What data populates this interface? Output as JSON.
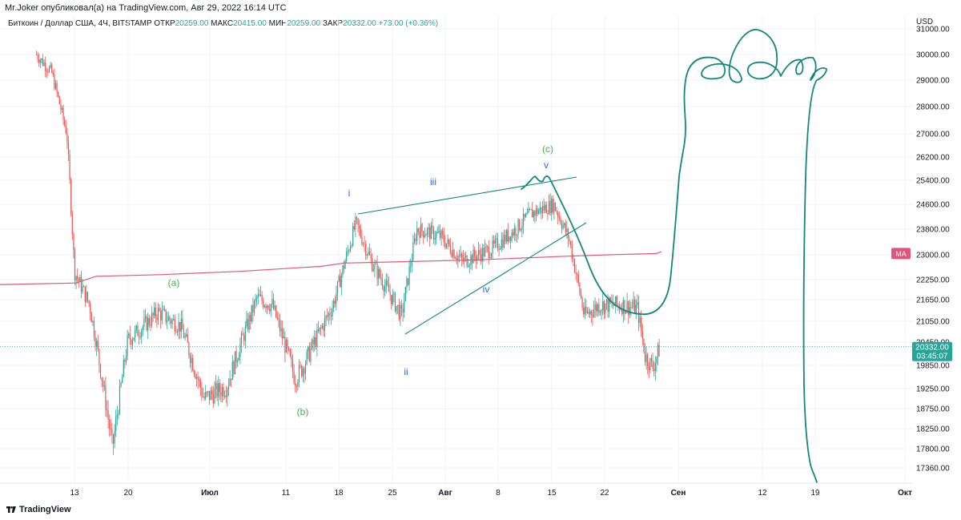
{
  "header": {
    "publish_line": "Mr.Joker опубликовал(а) на TradingView.com, Авг 29, 2022 16:14 UTC"
  },
  "legend": {
    "symbol": "Биткоин / Доллар США, 4Ч, BITSTAMP",
    "open_label": "ОТКР",
    "open_value": "20259.00",
    "high_label": "МАКС",
    "high_value": "20415.00",
    "low_label": "МИН",
    "low_value": "20259.00",
    "close_label": "ЗАКР",
    "close_value": "20332.00",
    "change": "+73.00 (+0.36%)"
  },
  "footer": {
    "brand": "TradingView"
  },
  "colors": {
    "up": "#26a69a",
    "down": "#ef5350",
    "ma": "#e0557a",
    "wave_green": "#4caf50",
    "wave_blue": "#2962ff",
    "drawing": "#11887a",
    "grid": "#f0f3fa"
  },
  "chart_data": {
    "type": "candlestick",
    "price_axis_label": "USD",
    "y_ticks": [
      31000,
      30000,
      29000,
      28000,
      27000,
      26200,
      25400,
      24600,
      23800,
      23000,
      22250,
      21650,
      21050,
      20450,
      19850,
      19250,
      18750,
      18250,
      17800,
      17360
    ],
    "y_tick_labels": [
      "31000.00",
      "30000.00",
      "29000.00",
      "28000.00",
      "27000.00",
      "26200.00",
      "25400.00",
      "24600.00",
      "23800.00",
      "23000.00",
      "22250.00",
      "21650.00",
      "21050.00",
      "20450.00",
      "19850.00",
      "19250.00",
      "18750.00",
      "18250.00",
      "17800.00",
      "17360.00"
    ],
    "x_tick_labels": [
      "13",
      "20",
      "Июл",
      "11",
      "18",
      "25",
      "Авг",
      "8",
      "15",
      "22",
      "Сен",
      "12",
      "19",
      "Окт"
    ],
    "last_price": {
      "label": "20332.00",
      "countdown": "03:45:07",
      "value": 20332
    },
    "ma": {
      "label": "MA",
      "value": 23040
    },
    "wave_labels": [
      {
        "text": "(a)",
        "color": "green"
      },
      {
        "text": "(b)",
        "color": "green"
      },
      {
        "text": "(c)",
        "color": "green"
      },
      {
        "text": "i",
        "color": "blue"
      },
      {
        "text": "ii",
        "color": "blue"
      },
      {
        "text": "iii",
        "color": "blue"
      },
      {
        "text": "iv",
        "color": "blue"
      },
      {
        "text": "v",
        "color": "blue"
      }
    ],
    "price_path": [
      [
        "2022-06-08",
        30000
      ],
      [
        "2022-06-10",
        29300
      ],
      [
        "2022-06-12",
        27000
      ],
      [
        "2022-06-13",
        22500
      ],
      [
        "2022-06-15",
        21500
      ],
      [
        "2022-06-18",
        17800
      ],
      [
        "2022-06-20",
        20500
      ],
      [
        "2022-06-24",
        21300
      ],
      [
        "2022-06-27",
        20900
      ],
      [
        "2022-06-30",
        19000
      ],
      [
        "2022-07-03",
        19300
      ],
      [
        "2022-07-07",
        21700
      ],
      [
        "2022-07-09",
        21500
      ],
      [
        "2022-07-12",
        19500
      ],
      [
        "2022-07-13",
        19800
      ],
      [
        "2022-07-17",
        21500
      ],
      [
        "2022-07-20",
        24000
      ],
      [
        "2022-07-22",
        22800
      ],
      [
        "2022-07-26",
        21200
      ],
      [
        "2022-07-28",
        23800
      ],
      [
        "2022-07-31",
        23600
      ],
      [
        "2022-08-03",
        22800
      ],
      [
        "2022-08-07",
        23200
      ],
      [
        "2022-08-10",
        23800
      ],
      [
        "2022-08-12",
        24300
      ],
      [
        "2022-08-15",
        24600
      ],
      [
        "2022-08-17",
        23500
      ],
      [
        "2022-08-19",
        21200
      ],
      [
        "2022-08-21",
        21500
      ],
      [
        "2022-08-24",
        21500
      ],
      [
        "2022-08-26",
        21400
      ],
      [
        "2022-08-27",
        20100
      ],
      [
        "2022-08-28",
        19800
      ],
      [
        "2022-08-29",
        20332
      ]
    ]
  }
}
